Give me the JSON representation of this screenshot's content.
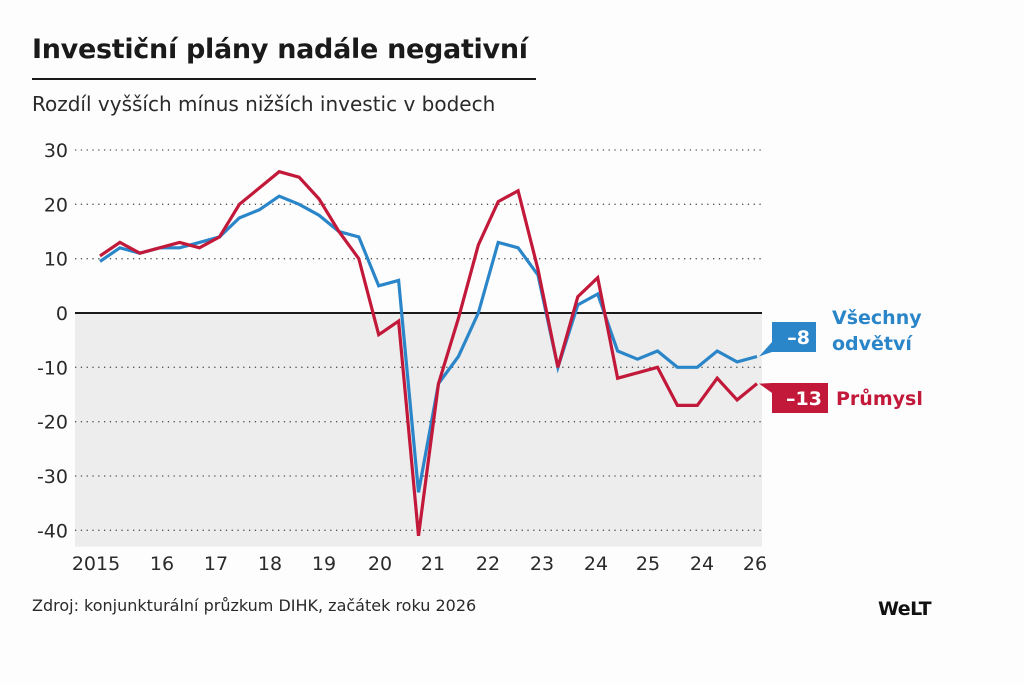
{
  "header": {
    "title": "Investiční plány nadále negativní",
    "subtitle": "Rozdíl vyšších mínus nižších investic v bodech"
  },
  "footer": {
    "source": "Zdroj: konjunkturální průzkum DIHK, začátek roku 2026",
    "logo": "WeLT"
  },
  "colors": {
    "all_sectors": "#2b86c9",
    "industry": "#c2193a",
    "negative_area": "#ededed",
    "zero_line": "#1a1a1a",
    "grid": "#555555"
  },
  "chart_data": {
    "type": "line",
    "title": "Investiční plány nadále negativní",
    "subtitle": "Rozdíl vyšších mínus nižších investic v bodech",
    "xlabel": "",
    "ylabel": "",
    "ylim": [
      -43,
      30
    ],
    "yticks": [
      30,
      20,
      10,
      0,
      -10,
      -20,
      -30,
      -40
    ],
    "ytick_labels": [
      "30",
      "20",
      "10",
      "0",
      "-10",
      "-20",
      "-30",
      "-40"
    ],
    "xtick_labels": [
      "2015",
      "16",
      "17",
      "18",
      "19",
      "20",
      "21",
      "22",
      "23",
      "24",
      "25",
      "24",
      "26"
    ],
    "xlim": [
      0,
      33
    ],
    "grid": true,
    "legend": "right",
    "series": [
      {
        "name": "Všechny odvětví",
        "name_lines": [
          "Všechny",
          "odvětví"
        ],
        "last_label": "–8",
        "color": "#2b86c9",
        "values": [
          9.5,
          12,
          11,
          12,
          12,
          13,
          14,
          17.5,
          19,
          21.5,
          20,
          18,
          15,
          14,
          5,
          6,
          -33,
          -13,
          -8,
          0,
          13,
          12,
          7,
          -10,
          1.5,
          3.5,
          -7,
          -8.5,
          -7,
          -10,
          -10,
          -7,
          -9,
          -8
        ]
      },
      {
        "name": "Průmysl",
        "name_lines": [
          "Průmysl"
        ],
        "last_label": "–13",
        "color": "#c2193a",
        "values": [
          10.5,
          13,
          11,
          12,
          13,
          12,
          14,
          20,
          23,
          26,
          25,
          21,
          15,
          10,
          -4,
          -1.5,
          -41,
          -13,
          -1,
          12.5,
          20.5,
          22.5,
          8,
          -10,
          3,
          6.5,
          -12,
          -11,
          -10,
          -17,
          -17,
          -12,
          -16,
          -13
        ]
      }
    ]
  }
}
